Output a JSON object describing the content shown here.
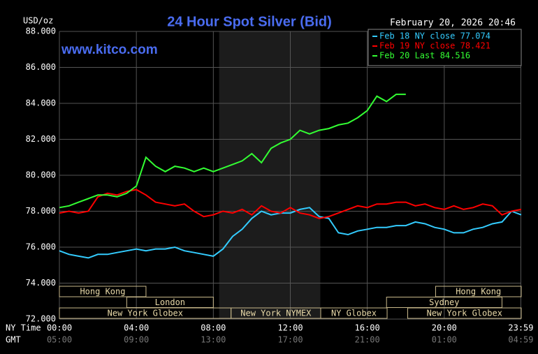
{
  "chart_data": {
    "type": "line",
    "title": "24 Hour Spot Silver (Bid)",
    "date": "February 20, 2026 20:46",
    "watermark": "www.kitco.com",
    "y_label": "USD/oz",
    "x_label": "NY Time",
    "x2_label": "GMT",
    "x": [
      0,
      0.5,
      1,
      1.5,
      2,
      2.5,
      3,
      3.5,
      4,
      4.5,
      5,
      5.5,
      6,
      6.5,
      7,
      7.5,
      8,
      8.5,
      9,
      9.5,
      10,
      10.5,
      11,
      11.5,
      12,
      12.5,
      13,
      13.5,
      14,
      14.5,
      15,
      15.5,
      16,
      16.5,
      17,
      17.5,
      18,
      18.5,
      19,
      19.5,
      20,
      20.5,
      21,
      21.5,
      22,
      22.5,
      23,
      23.5,
      24
    ],
    "xlim": [
      0,
      24
    ],
    "xticks": [
      {
        "value": 0,
        "label": "00:00"
      },
      {
        "value": 4,
        "label": "04:00"
      },
      {
        "value": 8,
        "label": "08:00"
      },
      {
        "value": 12,
        "label": "12:00"
      },
      {
        "value": 16,
        "label": "16:00"
      },
      {
        "value": 20,
        "label": "20:00"
      },
      {
        "value": 23.98,
        "label": "23:59"
      }
    ],
    "gmt_tick_labels": [
      "05:00",
      "09:00",
      "13:00",
      "17:00",
      "21:00",
      "01:00",
      "04:59"
    ],
    "ylim": [
      72,
      88
    ],
    "yticks": [
      {
        "value": 72,
        "label": "72.000"
      },
      {
        "value": 74,
        "label": "74.000"
      },
      {
        "value": 76,
        "label": "76.000"
      },
      {
        "value": 78,
        "label": "78.000"
      },
      {
        "value": 80,
        "label": "80.000"
      },
      {
        "value": 82,
        "label": "82.000"
      },
      {
        "value": 84,
        "label": "84.000"
      },
      {
        "value": 86,
        "label": "86.000"
      },
      {
        "value": 88,
        "label": "88.000"
      }
    ],
    "grid": true,
    "shaded": [
      8.3,
      13.56
    ],
    "series": [
      {
        "name": "Feb 18 NY close 77.074",
        "color": "#33ccff",
        "values": [
          75.8,
          75.6,
          75.5,
          75.4,
          75.6,
          75.6,
          75.7,
          75.8,
          75.9,
          75.8,
          75.9,
          75.9,
          76.0,
          75.8,
          75.7,
          75.6,
          75.5,
          75.9,
          76.6,
          77.0,
          77.6,
          78.0,
          77.8,
          77.9,
          77.9,
          78.1,
          78.2,
          77.7,
          77.6,
          76.8,
          76.7,
          76.9,
          77.0,
          77.1,
          77.1,
          77.2,
          77.2,
          77.4,
          77.3,
          77.1,
          77.0,
          76.8,
          76.8,
          77.0,
          77.1,
          77.3,
          77.4,
          78.0,
          77.8
        ]
      },
      {
        "name": "Feb 19 NY close 78.421",
        "color": "#ff0000",
        "values": [
          77.9,
          78.0,
          77.9,
          78.0,
          78.8,
          79.0,
          78.9,
          79.1,
          79.2,
          78.9,
          78.5,
          78.4,
          78.3,
          78.4,
          78.0,
          77.7,
          77.8,
          78.0,
          77.9,
          78.1,
          77.8,
          78.3,
          78.0,
          77.9,
          78.2,
          77.9,
          77.8,
          77.6,
          77.7,
          77.9,
          78.1,
          78.3,
          78.2,
          78.4,
          78.4,
          78.5,
          78.5,
          78.3,
          78.4,
          78.2,
          78.1,
          78.3,
          78.1,
          78.2,
          78.4,
          78.3,
          77.8,
          78.0,
          78.1
        ]
      },
      {
        "name": "Feb 20 Last 84.516",
        "color": "#33ff33",
        "values": [
          78.2,
          78.3,
          78.5,
          78.7,
          78.9,
          78.9,
          78.8,
          79.0,
          79.4,
          81.0,
          80.5,
          80.2,
          80.5,
          80.4,
          80.2,
          80.4,
          80.2,
          80.4,
          80.6,
          80.8,
          81.2,
          80.7,
          81.5,
          81.8,
          82.0,
          82.5,
          82.3,
          82.5,
          82.6,
          82.8,
          82.9,
          83.2,
          83.6,
          84.4,
          84.1,
          84.5,
          84.5,
          null,
          null,
          null,
          null,
          null,
          null,
          null,
          null,
          null,
          null,
          null,
          null
        ]
      }
    ],
    "sessions": [
      {
        "label": "Hong Kong",
        "start": 0,
        "end": 4.5,
        "row": 0
      },
      {
        "label": "Hong Kong",
        "start": 19.55,
        "end": 24,
        "row": 0
      },
      {
        "label": "London",
        "start": 3.5,
        "end": 8,
        "row": 1
      },
      {
        "label": "Sydney",
        "start": 17,
        "end": 23,
        "row": 1
      },
      {
        "label": "New York Globex",
        "start": 0,
        "end": 8.92,
        "row": 2
      },
      {
        "label": "New York NYMEX",
        "start": 8.92,
        "end": 13.58,
        "row": 2
      },
      {
        "label": "NY Globex",
        "start": 13.58,
        "end": 17.03,
        "row": 2
      },
      {
        "label": "New York Globex",
        "start": 18.1,
        "end": 24,
        "row": 2
      }
    ]
  }
}
